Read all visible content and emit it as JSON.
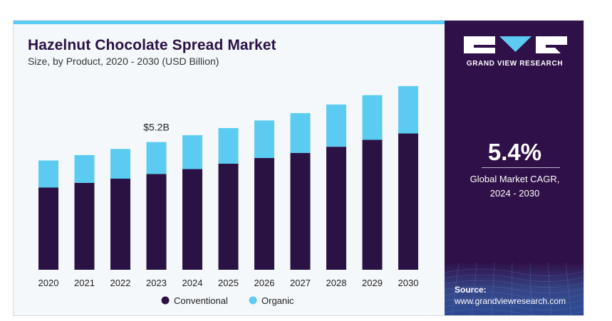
{
  "header": {
    "title": "Hazelnut Chocolate Spread Market",
    "subtitle": "Size, by Product, 2020 - 2030 (USD Billion)"
  },
  "sidebar": {
    "brand": "GRAND VIEW RESEARCH",
    "cagr_value": "5.4%",
    "cagr_label_line1": "Global Market CAGR,",
    "cagr_label_line2": "2024 - 2030",
    "source_label": "Source:",
    "source_url": "www.grandviewresearch.com"
  },
  "colors": {
    "conventional": "#2a1244",
    "organic": "#5ccbf2",
    "sidebar_bg": "#301048",
    "accent_bar": "#5ccbf2"
  },
  "chart_data": {
    "type": "bar",
    "stacked": true,
    "title": "Hazelnut Chocolate Spread Market",
    "subtitle": "Size, by Product, 2020 - 2030 (USD Billion)",
    "categories": [
      "2020",
      "2021",
      "2022",
      "2023",
      "2024",
      "2025",
      "2026",
      "2027",
      "2028",
      "2029",
      "2030"
    ],
    "series": [
      {
        "name": "Conventional",
        "color": "#2a1244",
        "values": [
          3.35,
          3.54,
          3.71,
          3.9,
          4.1,
          4.32,
          4.55,
          4.76,
          5.01,
          5.29,
          5.55
        ]
      },
      {
        "name": "Organic",
        "color": "#5ccbf2",
        "values": [
          1.1,
          1.13,
          1.21,
          1.3,
          1.38,
          1.45,
          1.53,
          1.62,
          1.72,
          1.82,
          1.93
        ]
      }
    ],
    "annotations": [
      {
        "category": "2023",
        "text": "$5.2B"
      }
    ],
    "legend": {
      "position": "bottom"
    },
    "ylim": [
      0,
      8
    ],
    "grid": false,
    "y_axis_visible": false
  }
}
